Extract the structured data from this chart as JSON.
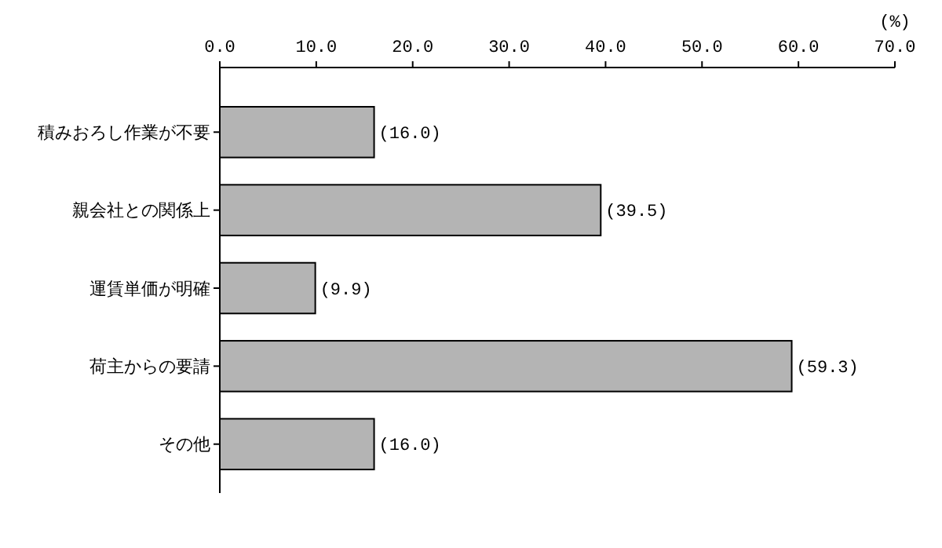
{
  "chart_data": {
    "type": "bar",
    "orientation": "horizontal",
    "xlabel": "(%)",
    "categories": [
      "積みおろし作業が不要",
      "親会社との関係上",
      "運賃単価が明確",
      "荷主からの要請",
      "その他"
    ],
    "values": [
      16.0,
      39.5,
      9.9,
      59.3,
      16.0
    ],
    "value_labels": [
      "(16.0)",
      "(39.5)",
      "(9.9)",
      "(59.3)",
      "(16.0)"
    ],
    "color": "#b4b4b4",
    "xlim": [
      0,
      70
    ],
    "xticks": [
      {
        "value": 0,
        "label": "0.0"
      },
      {
        "value": 10,
        "label": "10.0"
      },
      {
        "value": 20,
        "label": "20.0"
      },
      {
        "value": 30,
        "label": "30.0"
      },
      {
        "value": 40,
        "label": "40.0"
      },
      {
        "value": 50,
        "label": "50.0"
      },
      {
        "value": 60,
        "label": "60.0"
      },
      {
        "value": 70,
        "label": "70.0"
      }
    ],
    "grid": false
  }
}
